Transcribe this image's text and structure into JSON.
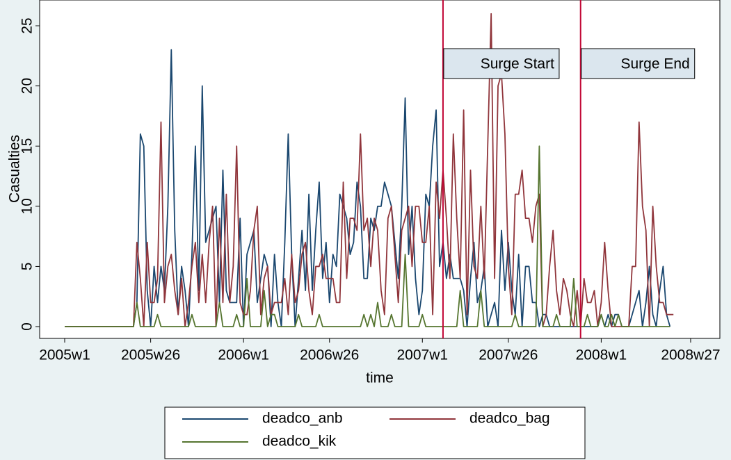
{
  "chart_data": {
    "type": "line",
    "y_label": "Casualties",
    "x_label": "time",
    "x": [
      0,
      1,
      2,
      3,
      4,
      5,
      6,
      7,
      8,
      9,
      10,
      11,
      12,
      13,
      14,
      15,
      16,
      17,
      18,
      19,
      20,
      21,
      22,
      23,
      24,
      25,
      26,
      27,
      28,
      29,
      30,
      31,
      32,
      33,
      34,
      35,
      36,
      37,
      38,
      39,
      40,
      41,
      42,
      43,
      44,
      45,
      46,
      47,
      48,
      49,
      50,
      51,
      52,
      53,
      54,
      55,
      56,
      57,
      58,
      59,
      60,
      61,
      62,
      63,
      64,
      65,
      66,
      67,
      68,
      69,
      70,
      71,
      72,
      73,
      74,
      75,
      76,
      77,
      78,
      79,
      80,
      81,
      82,
      83,
      84,
      85,
      86,
      87,
      88,
      89,
      90,
      91,
      92,
      93,
      94,
      95,
      96,
      97,
      98,
      99,
      100,
      101,
      102,
      103,
      104,
      105,
      106,
      107,
      108,
      109,
      110,
      111,
      112,
      113,
      114,
      115,
      116,
      117,
      118,
      119,
      120,
      121,
      122,
      123,
      124,
      125,
      126,
      127,
      128,
      129,
      130,
      131,
      132,
      133,
      134,
      135,
      136,
      137,
      138,
      139,
      140,
      141,
      142,
      143,
      144,
      145,
      146,
      147,
      148,
      149,
      150,
      151,
      152,
      153,
      154,
      155,
      156,
      157,
      158,
      159,
      160,
      161,
      162,
      163,
      164,
      165,
      166,
      167,
      168,
      169,
      170,
      171,
      172,
      173,
      174,
      175,
      176,
      177
    ],
    "series": [
      {
        "name": "deadco_anb",
        "color": "#1a476f",
        "values": [
          0,
          0,
          0,
          0,
          0,
          0,
          0,
          0,
          0,
          0,
          0,
          0,
          0,
          0,
          0,
          0,
          0,
          0,
          0,
          0,
          0,
          2,
          16,
          15,
          3,
          0,
          5,
          2,
          5,
          3,
          10,
          23,
          8,
          1,
          5,
          3,
          0,
          6,
          15,
          3,
          20,
          7,
          8,
          9,
          10,
          2,
          13,
          3,
          2,
          2,
          2,
          9,
          0,
          6,
          7,
          8,
          2,
          4,
          6,
          5,
          0,
          6,
          2,
          0,
          7,
          16,
          6,
          0,
          4,
          8,
          3,
          11,
          3,
          8,
          12,
          4,
          7,
          2,
          6,
          5,
          11,
          10,
          9,
          6,
          7,
          12,
          10,
          4,
          4,
          9,
          8,
          10,
          10,
          12,
          11,
          10,
          7,
          4,
          10,
          19,
          6,
          10,
          4,
          1,
          3,
          11,
          10,
          15,
          18,
          5,
          7,
          4,
          6,
          4,
          4,
          4,
          3,
          0,
          4,
          7,
          2,
          3,
          5,
          0,
          1,
          2,
          0,
          8,
          3,
          7,
          3,
          1,
          6,
          0,
          5,
          5,
          2,
          2,
          0,
          1,
          1,
          0,
          0,
          0,
          0,
          0,
          0,
          0,
          0,
          0,
          0,
          0,
          0,
          0,
          0,
          0,
          1,
          0,
          1,
          0,
          1,
          1,
          0,
          0,
          0,
          1,
          2,
          3,
          0,
          2,
          5,
          1,
          0,
          3,
          5,
          1,
          0,
          null
        ]
      },
      {
        "name": "deadco_bag",
        "color": "#90353b",
        "values": [
          0,
          0,
          0,
          0,
          0,
          0,
          0,
          0,
          0,
          0,
          0,
          0,
          0,
          0,
          0,
          0,
          0,
          0,
          0,
          0,
          0,
          7,
          4,
          0,
          7,
          2,
          2,
          4,
          17,
          2,
          5,
          6,
          3,
          1,
          4,
          0,
          2,
          5,
          7,
          2,
          6,
          2,
          7,
          10,
          0,
          9,
          2,
          11,
          2,
          5,
          15,
          2,
          1,
          1,
          3,
          8,
          10,
          1,
          4,
          5,
          1,
          2,
          2,
          2,
          4,
          1,
          6,
          2,
          3,
          6,
          7,
          3,
          1,
          5,
          5,
          6,
          4,
          4,
          4,
          2,
          2,
          12,
          4,
          9,
          9,
          8,
          16,
          8,
          9,
          5,
          9,
          8,
          3,
          1,
          9,
          10,
          6,
          2,
          8,
          9,
          10,
          5,
          10,
          10,
          7,
          7,
          10,
          1,
          12,
          9,
          13,
          9,
          4,
          16,
          9,
          4,
          18,
          1,
          13,
          5,
          4,
          10,
          4,
          15,
          26,
          4,
          20,
          21,
          16,
          5,
          1,
          11,
          11,
          13,
          9,
          9,
          7,
          10,
          11,
          0,
          1,
          5,
          8,
          3,
          1,
          4,
          3,
          1,
          0,
          3,
          0,
          4,
          2,
          2,
          3,
          0,
          2,
          7,
          3,
          0,
          0,
          0,
          0,
          0,
          0,
          5,
          5,
          17,
          10,
          8,
          0,
          10,
          5,
          2,
          2,
          1,
          1,
          1
        ]
      },
      {
        "name": "deadco_kik",
        "color": "#55752f",
        "values": [
          0,
          0,
          0,
          0,
          0,
          0,
          0,
          0,
          0,
          0,
          0,
          0,
          0,
          0,
          0,
          0,
          0,
          0,
          0,
          0,
          0,
          2,
          0,
          0,
          0,
          0,
          0,
          1,
          0,
          0,
          0,
          0,
          0,
          0,
          0,
          0,
          0,
          1,
          0,
          0,
          0,
          0,
          0,
          0,
          0,
          2,
          0,
          0,
          0,
          0,
          1,
          0,
          0,
          4,
          0,
          0,
          0,
          0,
          3,
          0,
          1,
          1,
          0,
          0,
          0,
          0,
          0,
          0,
          1,
          0,
          0,
          0,
          0,
          0,
          1,
          0,
          0,
          0,
          0,
          0,
          0,
          0,
          0,
          0,
          0,
          0,
          0,
          1,
          0,
          1,
          0,
          2,
          0,
          0,
          0,
          1,
          0,
          0,
          0,
          6,
          0,
          0,
          0,
          0,
          1,
          0,
          0,
          0,
          0,
          0,
          0,
          0,
          0,
          0,
          0,
          3,
          0,
          0,
          0,
          0,
          0,
          3,
          0,
          0,
          0,
          0,
          0,
          0,
          0,
          0,
          0,
          1,
          0,
          0,
          0,
          0,
          0,
          0,
          15,
          0,
          0,
          0,
          0,
          1,
          0,
          0,
          0,
          0,
          4,
          0,
          0,
          0,
          1,
          0,
          0,
          0,
          1,
          0,
          0,
          1,
          0,
          1,
          0,
          0,
          0,
          0,
          0,
          0,
          0,
          0,
          0,
          0,
          0,
          0,
          0,
          0,
          0,
          null
        ]
      }
    ],
    "xlim": [
      -7.28,
      190.5
    ],
    "xticks": [
      {
        "value": 0,
        "label": "2005w1"
      },
      {
        "value": 25,
        "label": "2005w26"
      },
      {
        "value": 52,
        "label": "2006w1"
      },
      {
        "value": 77,
        "label": "2006w26"
      },
      {
        "value": 104,
        "label": "2007w1"
      },
      {
        "value": 129,
        "label": "2007w26"
      },
      {
        "value": 156,
        "label": "2008w1"
      },
      {
        "value": 182,
        "label": "2008w27"
      }
    ],
    "ylim": [
      -0.98,
      27.14
    ],
    "yticks": [
      0,
      5,
      10,
      15,
      20,
      25
    ],
    "xlines": [
      {
        "value": 110,
        "label": "Surge Start"
      },
      {
        "value": 150,
        "label": "Surge End"
      }
    ],
    "xline_color": "#c10534"
  }
}
